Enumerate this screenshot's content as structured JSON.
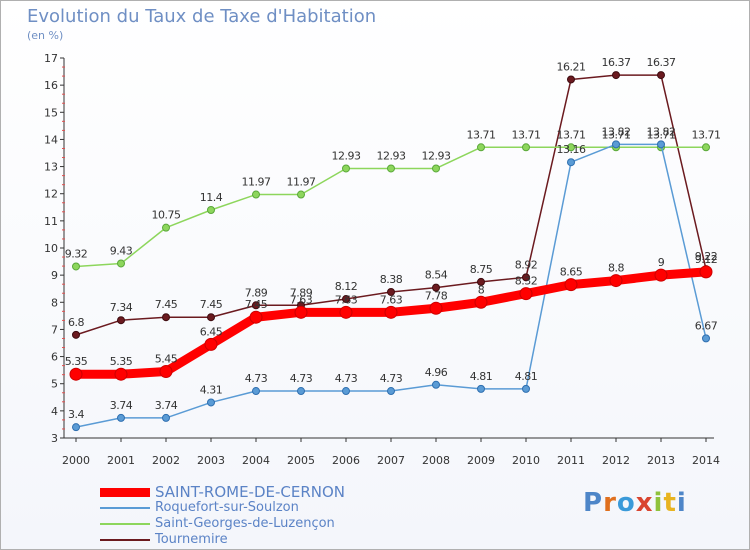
{
  "header": {
    "title": "Evolution du Taux de Taxe d'Habitation",
    "unit": "(en %)"
  },
  "logo": {
    "text": "Proxiti",
    "letter_colors": [
      "#4e86c8",
      "#e0701e",
      "#3a9ad9",
      "#d94530",
      "#8fc23c",
      "#e8b420",
      "#4e86c8"
    ]
  },
  "chart_data": {
    "type": "line",
    "x": [
      2000,
      2001,
      2002,
      2003,
      2004,
      2005,
      2006,
      2007,
      2008,
      2009,
      2010,
      2011,
      2012,
      2013,
      2014
    ],
    "ylim": [
      3,
      17
    ],
    "yticks": [
      3,
      4,
      5,
      6,
      7,
      8,
      9,
      10,
      11,
      12,
      13,
      14,
      15,
      16,
      17
    ],
    "grid": false,
    "legend": "bottom-left",
    "series": [
      {
        "name": "Tournemire",
        "color": "#6b1a1f",
        "values": [
          6.8,
          7.34,
          7.45,
          7.45,
          7.89,
          7.89,
          8.12,
          8.38,
          8.54,
          8.75,
          8.92,
          16.21,
          16.37,
          16.37,
          9.22
        ],
        "labels": [
          "6.8",
          "7.34",
          "7.45",
          "7.45",
          "7.89",
          "7.89",
          "8.12",
          "8.38",
          "8.54",
          "8.75",
          "8.92",
          "16.21",
          "16.37",
          "16.37",
          "9.22"
        ]
      },
      {
        "name": "Saint-Georges-de-Luzençon",
        "color": "#8dd65c",
        "values": [
          9.32,
          9.43,
          10.75,
          11.4,
          11.97,
          11.97,
          12.93,
          12.93,
          12.93,
          13.71,
          13.71,
          13.71,
          13.71,
          13.71,
          13.71
        ],
        "labels": [
          "9.32",
          "9.43",
          "10.75",
          "11.4",
          "11.97",
          "11.97",
          "12.93",
          "12.93",
          "12.93",
          "13.71",
          "13.71",
          "13.71",
          "13.71",
          "13.71",
          "13.71"
        ]
      },
      {
        "name": "Roquefort-sur-Soulzon",
        "color": "#5a9bd5",
        "values": [
          3.4,
          3.74,
          3.74,
          4.31,
          4.73,
          4.73,
          4.73,
          4.73,
          4.96,
          4.81,
          4.81,
          13.16,
          13.82,
          13.82,
          6.67
        ],
        "labels": [
          "3.4",
          "3.74",
          "3.74",
          "4.31",
          "4.73",
          "4.73",
          "4.73",
          "4.73",
          "4.96",
          "4.81",
          "4.81",
          "13.16",
          "13.82",
          "13.82",
          "6.67"
        ]
      },
      {
        "name": "SAINT-ROME-DE-CERNON",
        "color": "#ff0000",
        "values": [
          5.35,
          5.35,
          5.45,
          6.45,
          7.45,
          7.63,
          7.63,
          7.63,
          7.78,
          8,
          8.32,
          8.65,
          8.8,
          9,
          9.12
        ],
        "labels": [
          "5.35",
          "5.35",
          "5.45",
          "6.45",
          "7.45",
          "7.63",
          "7.63",
          "7.63",
          "7.78",
          "8",
          "8.32",
          "8.65",
          "8.8",
          "9",
          "9.12"
        ]
      }
    ],
    "legend_order": [
      "SAINT-ROME-DE-CERNON",
      "Roquefort-sur-Soulzon",
      "Saint-Georges-de-Luzençon",
      "Tournemire"
    ]
  }
}
